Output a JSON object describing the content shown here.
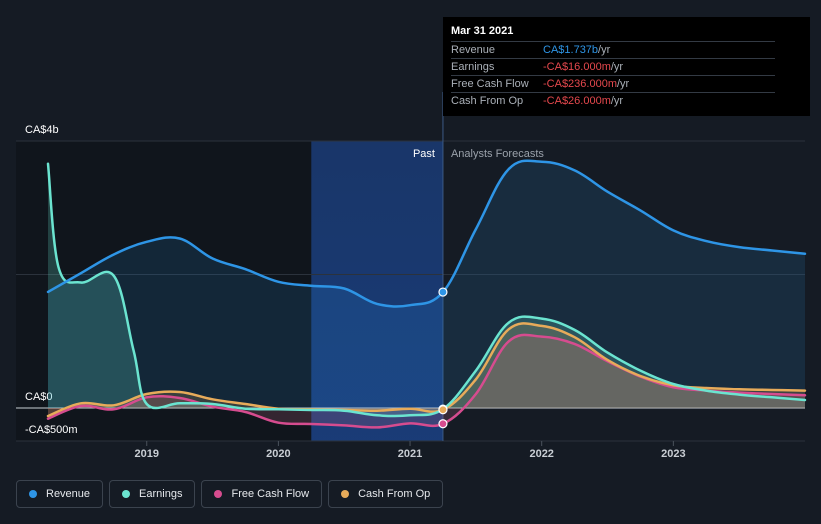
{
  "tooltip": {
    "date": "Mar 31 2021",
    "rows": [
      {
        "label": "Revenue",
        "value": "CA$1.737b",
        "unit": " /yr",
        "color": "#2e95e6"
      },
      {
        "label": "Earnings",
        "value": "-CA$16.000m",
        "unit": " /yr",
        "color": "#e5484d"
      },
      {
        "label": "Free Cash Flow",
        "value": "-CA$236.000m",
        "unit": " /yr",
        "color": "#e5484d"
      },
      {
        "label": "Cash From Op",
        "value": "-CA$26.000m",
        "unit": " /yr",
        "color": "#e5484d"
      }
    ]
  },
  "labels": {
    "past": "Past",
    "forecast": "Analysts Forecasts"
  },
  "legend": [
    {
      "label": "Revenue",
      "color": "#2e95e6"
    },
    {
      "label": "Earnings",
      "color": "#6be4d0"
    },
    {
      "label": "Free Cash Flow",
      "color": "#d64c8f"
    },
    {
      "label": "Cash From Op",
      "color": "#e7ab5a"
    }
  ],
  "chart_data": {
    "type": "line",
    "ylim": [
      -500,
      4000
    ],
    "ytick_labels": [
      {
        "value": 4000,
        "label": "CA$4b"
      },
      {
        "value": 0,
        "label": "CA$0"
      },
      {
        "value": -500,
        "label": "-CA$500m"
      }
    ],
    "xlim": [
      2018.25,
      2024.0
    ],
    "xticks": [
      {
        "value": 2019,
        "label": "2019"
      },
      {
        "value": 2020,
        "label": "2020"
      },
      {
        "value": 2021,
        "label": "2021"
      },
      {
        "value": 2022,
        "label": "2022"
      },
      {
        "value": 2023,
        "label": "2023"
      }
    ],
    "past_end": 2021.25,
    "highlight_start": 2020.25,
    "series": [
      {
        "name": "Revenue",
        "color": "#2e95e6",
        "points": [
          [
            2018.25,
            1740
          ],
          [
            2018.5,
            2020
          ],
          [
            2018.75,
            2300
          ],
          [
            2019.0,
            2490
          ],
          [
            2019.25,
            2540
          ],
          [
            2019.5,
            2240
          ],
          [
            2019.75,
            2080
          ],
          [
            2020.0,
            1890
          ],
          [
            2020.25,
            1830
          ],
          [
            2020.5,
            1790
          ],
          [
            2020.75,
            1560
          ],
          [
            2021.0,
            1540
          ],
          [
            2021.25,
            1737
          ],
          [
            2021.5,
            2680
          ],
          [
            2021.75,
            3580
          ],
          [
            2022.0,
            3690
          ],
          [
            2022.25,
            3560
          ],
          [
            2022.5,
            3240
          ],
          [
            2022.75,
            2960
          ],
          [
            2023.0,
            2660
          ],
          [
            2023.25,
            2500
          ],
          [
            2023.5,
            2410
          ],
          [
            2023.75,
            2360
          ],
          [
            2024.0,
            2310
          ]
        ]
      },
      {
        "name": "Earnings",
        "color": "#6be4d0",
        "points": [
          [
            2018.25,
            3660
          ],
          [
            2018.33,
            2110
          ],
          [
            2018.5,
            1880
          ],
          [
            2018.75,
            1980
          ],
          [
            2018.9,
            860
          ],
          [
            2019.0,
            60
          ],
          [
            2019.25,
            70
          ],
          [
            2019.5,
            60
          ],
          [
            2019.75,
            -10
          ],
          [
            2020.0,
            -20
          ],
          [
            2020.25,
            -30
          ],
          [
            2020.5,
            -40
          ],
          [
            2020.75,
            -110
          ],
          [
            2021.0,
            -110
          ],
          [
            2021.25,
            -16
          ],
          [
            2021.5,
            560
          ],
          [
            2021.75,
            1280
          ],
          [
            2022.0,
            1340
          ],
          [
            2022.25,
            1170
          ],
          [
            2022.5,
            830
          ],
          [
            2022.75,
            560
          ],
          [
            2023.0,
            360
          ],
          [
            2023.25,
            260
          ],
          [
            2023.5,
            200
          ],
          [
            2023.75,
            160
          ],
          [
            2024.0,
            120
          ]
        ]
      },
      {
        "name": "Free Cash Flow",
        "color": "#d64c8f",
        "points": [
          [
            2018.25,
            -160
          ],
          [
            2018.5,
            30
          ],
          [
            2018.75,
            -20
          ],
          [
            2019.0,
            160
          ],
          [
            2019.25,
            150
          ],
          [
            2019.5,
            20
          ],
          [
            2019.75,
            -60
          ],
          [
            2020.0,
            -220
          ],
          [
            2020.25,
            -240
          ],
          [
            2020.5,
            -260
          ],
          [
            2020.75,
            -290
          ],
          [
            2021.0,
            -230
          ],
          [
            2021.25,
            -236
          ],
          [
            2021.5,
            210
          ],
          [
            2021.75,
            1000
          ],
          [
            2022.0,
            1070
          ],
          [
            2022.25,
            960
          ],
          [
            2022.5,
            700
          ],
          [
            2022.75,
            470
          ],
          [
            2023.0,
            310
          ],
          [
            2023.25,
            260
          ],
          [
            2023.5,
            230
          ],
          [
            2023.75,
            210
          ],
          [
            2024.0,
            190
          ]
        ]
      },
      {
        "name": "Cash From Op",
        "color": "#e7ab5a",
        "points": [
          [
            2018.25,
            -120
          ],
          [
            2018.5,
            70
          ],
          [
            2018.75,
            40
          ],
          [
            2019.0,
            210
          ],
          [
            2019.25,
            240
          ],
          [
            2019.5,
            130
          ],
          [
            2019.75,
            60
          ],
          [
            2020.0,
            -10
          ],
          [
            2020.25,
            -20
          ],
          [
            2020.5,
            -30
          ],
          [
            2020.75,
            -40
          ],
          [
            2021.0,
            -10
          ],
          [
            2021.25,
            -26
          ],
          [
            2021.5,
            430
          ],
          [
            2021.75,
            1180
          ],
          [
            2022.0,
            1230
          ],
          [
            2022.25,
            1060
          ],
          [
            2022.5,
            720
          ],
          [
            2022.75,
            480
          ],
          [
            2023.0,
            340
          ],
          [
            2023.25,
            300
          ],
          [
            2023.5,
            280
          ],
          [
            2023.75,
            270
          ],
          [
            2024.0,
            260
          ]
        ]
      }
    ]
  }
}
